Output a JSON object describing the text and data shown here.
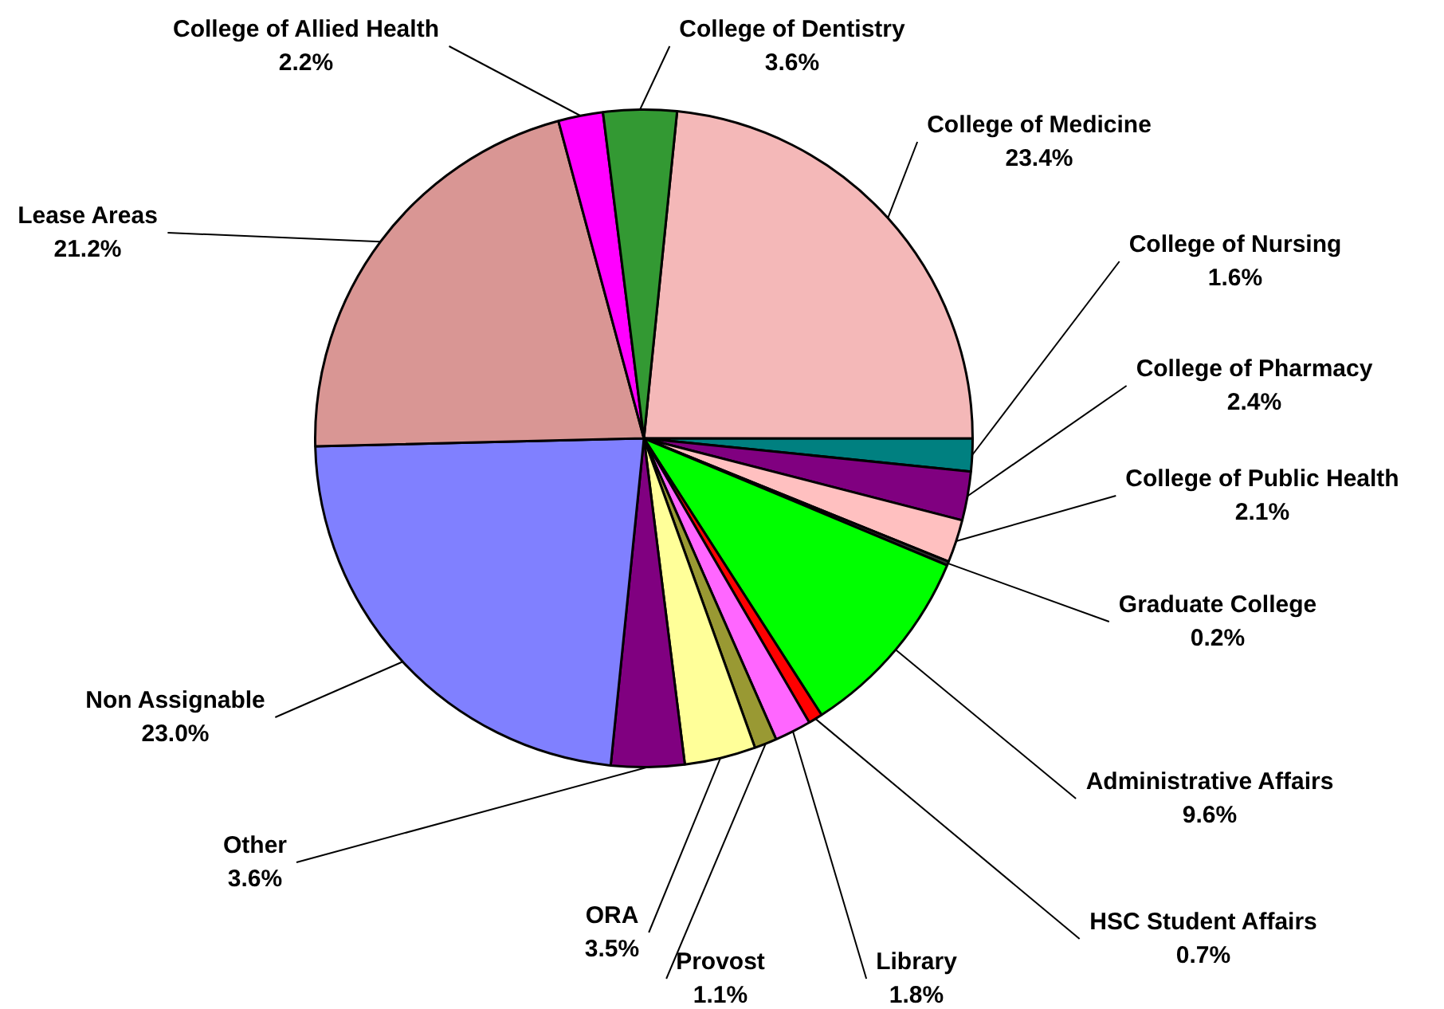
{
  "chart_data": {
    "type": "pie",
    "categories": [
      "College of Medicine",
      "College of Nursing",
      "College of Pharmacy",
      "College of Public Health",
      "Graduate College",
      "Administrative Affairs",
      "HSC Student Affairs",
      "Library",
      "Provost",
      "ORA",
      "Other",
      "Non Assignable",
      "Lease Areas",
      "College of Allied Health",
      "College of Dentistry"
    ],
    "values": [
      23.4,
      1.6,
      2.4,
      2.1,
      0.2,
      9.6,
      0.7,
      1.8,
      1.1,
      3.5,
      3.6,
      23.0,
      21.2,
      2.2,
      3.6
    ],
    "value_labels": [
      "23.4%",
      "1.6%",
      "2.4%",
      "2.1%",
      "0.2%",
      "9.6%",
      "0.7%",
      "1.8%",
      "1.1%",
      "3.5%",
      "3.6%",
      "23.0%",
      "21.2%",
      "2.2%",
      "3.6%"
    ],
    "colors": [
      "#f4b8b8",
      "#008080",
      "#800080",
      "#ffc0c0",
      "#333333",
      "#00ff00",
      "#ff0000",
      "#ff66ff",
      "#999933",
      "#ffff99",
      "#800080",
      "#8080ff",
      "#d99694",
      "#ff00ff",
      "#339933"
    ],
    "legend": false
  }
}
